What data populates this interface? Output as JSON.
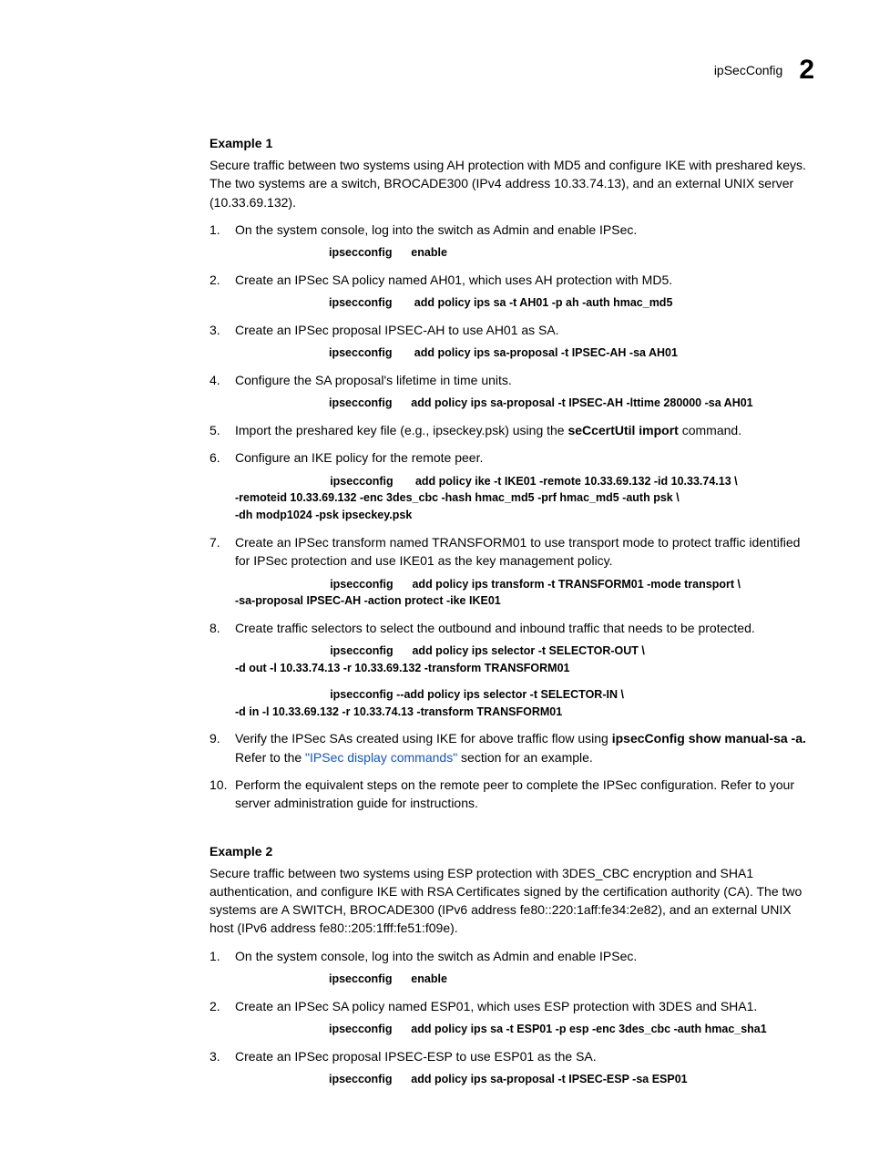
{
  "header": {
    "label": "ipSecConfig",
    "chapter": "2"
  },
  "example1": {
    "title": "Example 1",
    "intro": "Secure traffic between two systems using AH protection with MD5 and configure IKE with preshared keys. The two systems are a switch, BROCADE300 (IPv4 address 10.33.74.13), and an external UNIX server (10.33.69.132).",
    "steps": [
      {
        "text": "On the system console, log into the switch as Admin and enable IPSec.",
        "cmd": "ipsecconfig      enable"
      },
      {
        "text": "Create an IPSec SA policy named AH01, which uses AH protection with MD5.",
        "cmd": "ipsecconfig       add policy ips sa -t AH01 -p ah -auth hmac_md5"
      },
      {
        "text": "Create an IPSec proposal IPSEC-AH to use AH01 as SA.",
        "cmd": "ipsecconfig       add policy ips sa-proposal -t IPSEC-AH -sa AH01"
      },
      {
        "text": "Configure the SA proposal's lifetime in time units.",
        "cmd": "ipsecconfig      add policy ips sa-proposal -t IPSEC-AH -lttime 280000 -sa AH01"
      },
      {
        "text_pre": "Import the preshared key file (e.g., ipseckey.psk) using the ",
        "bold": "seCcertUtil import",
        "text_post": " command."
      },
      {
        "text": "Configure an IKE policy for the remote peer.",
        "cmd_head": "                              ipsecconfig       add policy ike -t IKE01 -remote 10.33.69.132 -id 10.33.74.13 \\",
        "cmd_body": "-remoteid 10.33.69.132 -enc 3des_cbc -hash hmac_md5 -prf hmac_md5 -auth psk \\\n-dh modp1024 -psk ipseckey.psk"
      },
      {
        "text": "Create an IPSec transform named TRANSFORM01 to use transport mode to protect traffic identified for IPSec protection and use IKE01 as the key management policy.",
        "cmd_head": "                              ipsecconfig      add policy ips transform -t TRANSFORM01 -mode transport \\",
        "cmd_body": "-sa-proposal IPSEC-AH -action protect -ike IKE01"
      },
      {
        "text": "Create traffic selectors to select the outbound and inbound traffic that needs to be protected.",
        "cmd1_head": "                              ipsecconfig      add policy ips selector -t SELECTOR-OUT \\",
        "cmd1_body": "-d out -l 10.33.74.13 -r 10.33.69.132 -transform TRANSFORM01",
        "cmd2_head": "                              ipsecconfig --add policy ips selector -t SELECTOR-IN \\",
        "cmd2_body": "-d in -l 10.33.69.132 -r 10.33.74.13 -transform TRANSFORM01"
      },
      {
        "text_pre1": "Verify the IPSec SAs created using IKE for above traffic flow using ",
        "bold1": "ipsecConfig        show manual-sa -a.",
        "text_mid": " Refer to the ",
        "link": "\"IPSec display commands\"",
        "text_post1": " section for an example."
      },
      {
        "text": "Perform the equivalent steps on the remote peer to complete the IPSec configuration. Refer to your server administration guide for instructions."
      }
    ]
  },
  "example2": {
    "title": "Example 2",
    "intro": "Secure traffic between two systems using ESP protection with 3DES_CBC encryption and SHA1 authentication, and configure IKE with RSA Certificates signed by the certification authority (CA). The two systems are A SWITCH, BROCADE300 (IPv6 address fe80::220:1aff:fe34:2e82), and an external UNIX host (IPv6 address fe80::205:1fff:fe51:f09e).",
    "steps": [
      {
        "text": "On the system console, log into the switch as Admin and enable IPSec.",
        "cmd": "ipsecconfig      enable"
      },
      {
        "text": "Create an IPSec SA policy named ESP01, which uses ESP protection with 3DES and SHA1.",
        "cmd": "ipsecconfig      add policy ips sa -t ESP01 -p esp -enc 3des_cbc -auth hmac_sha1"
      },
      {
        "text": "Create an IPSec proposal IPSEC-ESP to use ESP01 as the SA.",
        "cmd": "ipsecconfig      add policy ips sa-proposal -t IPSEC-ESP -sa ESP01"
      }
    ]
  }
}
